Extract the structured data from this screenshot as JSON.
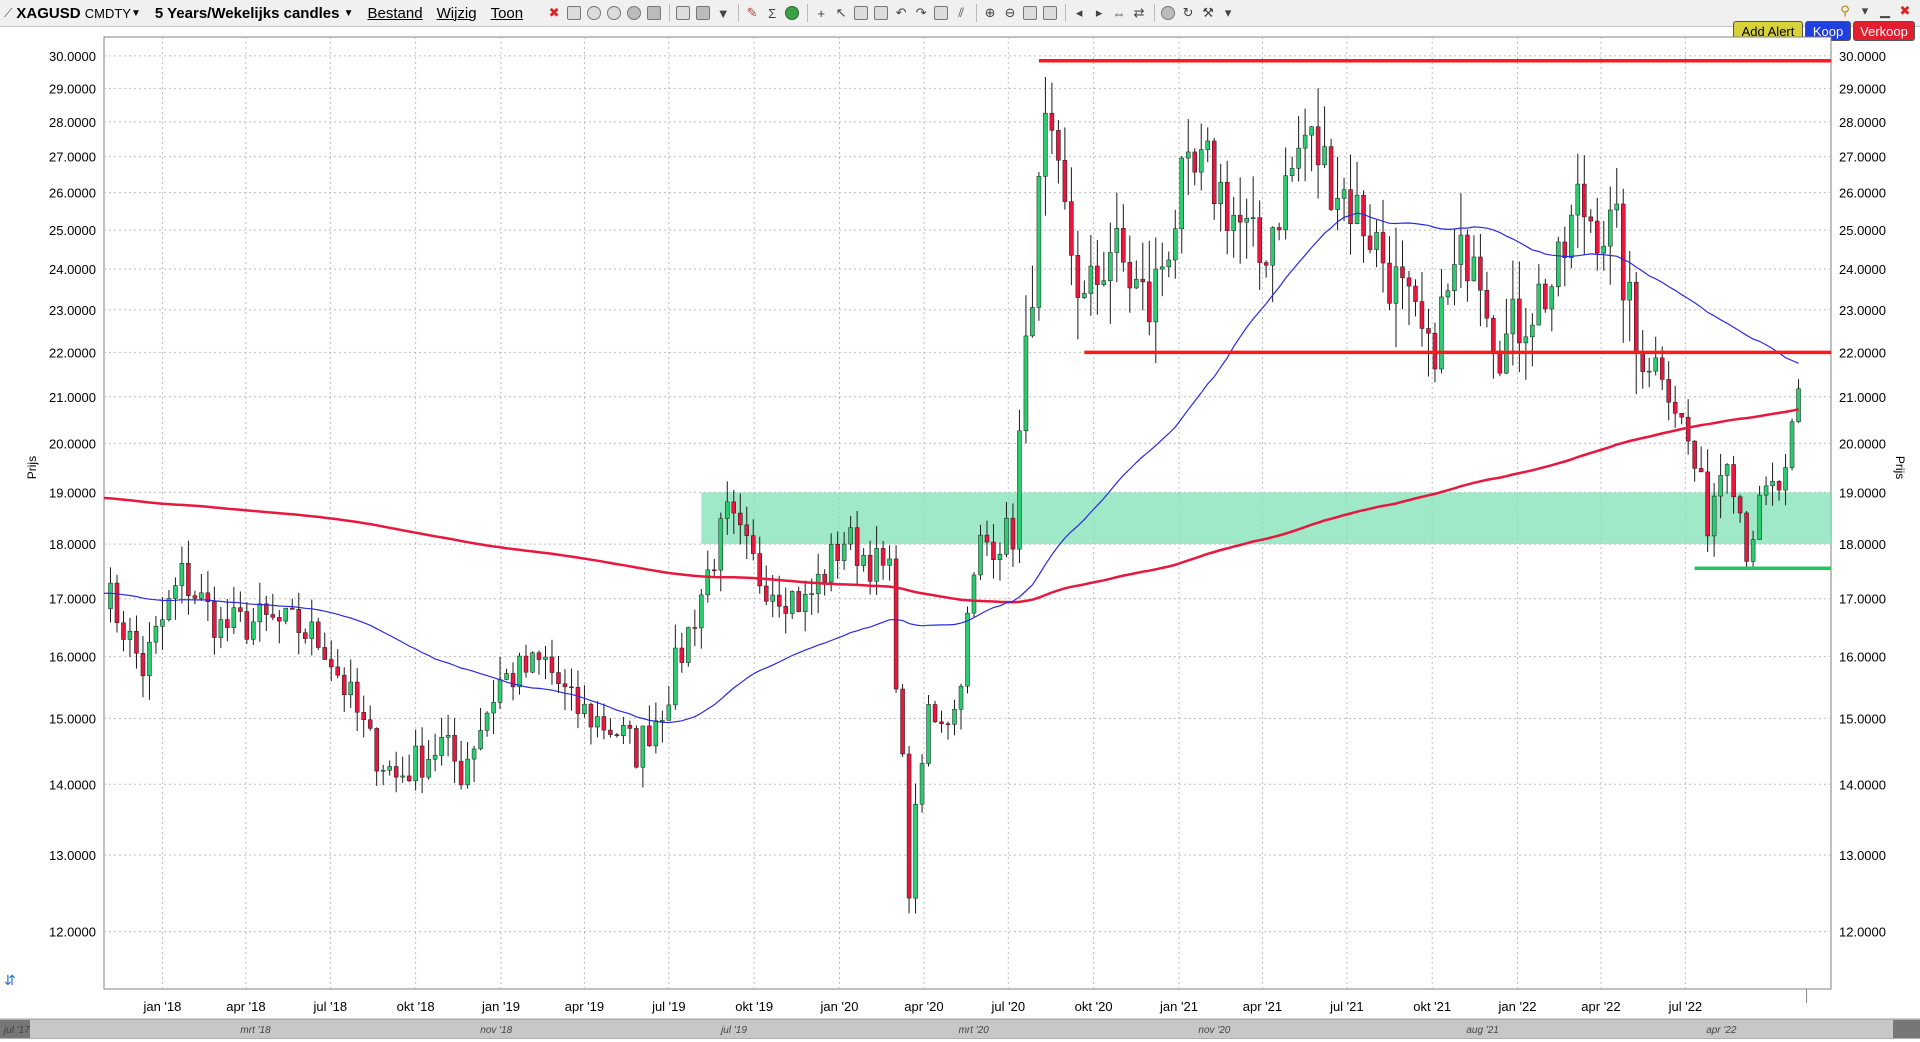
{
  "toolbar": {
    "symbol": "XAGUSD",
    "symbol_suffix": "CMDTY",
    "period": "5 Years/Wekelijks candles",
    "menus": [
      "Bestand",
      "Wijzig",
      "Toon"
    ],
    "buttons": {
      "add_alert": "Add Alert",
      "buy": "Koop",
      "sell": "Verkoop"
    }
  },
  "chart_data": {
    "type": "candlestick",
    "title": "",
    "ylabel": "Prijs",
    "ylim": [
      11.3,
      30.6
    ],
    "y_scale": "log",
    "y_ticks": [
      {
        "v": 30,
        "label": "30.0000"
      },
      {
        "v": 29,
        "label": "29.0000"
      },
      {
        "v": 28,
        "label": "28.0000"
      },
      {
        "v": 27,
        "label": "27.0000"
      },
      {
        "v": 26,
        "label": "26.0000"
      },
      {
        "v": 25,
        "label": "25.0000"
      },
      {
        "v": 24,
        "label": "24.0000"
      },
      {
        "v": 23,
        "label": "23.0000"
      },
      {
        "v": 22,
        "label": "22.0000"
      },
      {
        "v": 21,
        "label": "21.0000"
      },
      {
        "v": 20,
        "label": "20.0000"
      },
      {
        "v": 19,
        "label": "19.0000"
      },
      {
        "v": 18,
        "label": "18.0000"
      },
      {
        "v": 17,
        "label": "17.0000"
      },
      {
        "v": 16,
        "label": "16.0000"
      },
      {
        "v": 15,
        "label": "15.0000"
      },
      {
        "v": 14,
        "label": "14.0000"
      },
      {
        "v": 13,
        "label": "13.0000"
      },
      {
        "v": 12,
        "label": "12.0000"
      }
    ],
    "x_start": "2017-10-30",
    "x_end": "2022-12-05",
    "x_ticks": [
      {
        "d": "2018-01-01",
        "label": "jan '18"
      },
      {
        "d": "2018-04-01",
        "label": "apr '18"
      },
      {
        "d": "2018-07-01",
        "label": "jul '18"
      },
      {
        "d": "2018-10-01",
        "label": "okt '18"
      },
      {
        "d": "2019-01-01",
        "label": "jan '19"
      },
      {
        "d": "2019-04-01",
        "label": "apr '19"
      },
      {
        "d": "2019-07-01",
        "label": "jul '19"
      },
      {
        "d": "2019-10-01",
        "label": "okt '19"
      },
      {
        "d": "2020-01-01",
        "label": "jan '20"
      },
      {
        "d": "2020-04-01",
        "label": "apr '20"
      },
      {
        "d": "2020-07-01",
        "label": "jul '20"
      },
      {
        "d": "2020-10-01",
        "label": "okt '20"
      },
      {
        "d": "2021-01-01",
        "label": "jan '21"
      },
      {
        "d": "2021-04-01",
        "label": "apr '21"
      },
      {
        "d": "2021-07-01",
        "label": "jul '21"
      },
      {
        "d": "2021-10-01",
        "label": "okt '21"
      },
      {
        "d": "2022-01-01",
        "label": "jan '22"
      },
      {
        "d": "2022-04-01",
        "label": "apr '22"
      },
      {
        "d": "2022-07-01",
        "label": "jul '22"
      }
    ],
    "navigator_labels": [
      {
        "d": "2017-07-01",
        "label": "jul '17"
      },
      {
        "d": "2018-03-01",
        "label": "mrt '18"
      },
      {
        "d": "2018-11-01",
        "label": "nov '18"
      },
      {
        "d": "2019-07-01",
        "label": "jul '19"
      },
      {
        "d": "2020-03-01",
        "label": "mrt '20"
      },
      {
        "d": "2020-11-01",
        "label": "nov '20"
      },
      {
        "d": "2021-08-01",
        "label": "aug '21"
      },
      {
        "d": "2022-04-01",
        "label": "apr '22"
      }
    ],
    "price_anchors": [
      [
        "2017-10-30",
        17.2
      ],
      [
        "2017-12-11",
        15.8
      ],
      [
        "2018-01-22",
        17.4
      ],
      [
        "2018-03-05",
        16.5
      ],
      [
        "2018-04-16",
        16.6
      ],
      [
        "2018-05-28",
        16.5
      ],
      [
        "2018-06-25",
        16.2
      ],
      [
        "2018-08-13",
        14.6
      ],
      [
        "2018-09-10",
        14.1
      ],
      [
        "2018-10-29",
        14.6
      ],
      [
        "2018-11-19",
        14.2
      ],
      [
        "2018-12-31",
        15.6
      ],
      [
        "2019-02-18",
        15.9
      ],
      [
        "2019-03-18",
        15.2
      ],
      [
        "2019-05-06",
        14.8
      ],
      [
        "2019-05-27",
        14.5
      ],
      [
        "2019-06-24",
        15.2
      ],
      [
        "2019-07-22",
        16.4
      ],
      [
        "2019-09-02",
        18.5
      ],
      [
        "2019-10-07",
        17.4
      ],
      [
        "2019-11-25",
        16.9
      ],
      [
        "2020-01-06",
        18.1
      ],
      [
        "2020-02-24",
        17.4
      ],
      [
        "2020-03-16",
        12.6
      ],
      [
        "2020-04-06",
        15.1
      ],
      [
        "2020-05-04",
        15.1
      ],
      [
        "2020-06-01",
        18.0
      ],
      [
        "2020-07-06",
        18.2
      ],
      [
        "2020-07-27",
        23.9
      ],
      [
        "2020-08-10",
        27.5
      ],
      [
        "2020-09-21",
        23.0
      ],
      [
        "2020-10-19",
        24.6
      ],
      [
        "2020-11-30",
        23.0
      ],
      [
        "2021-01-04",
        26.0
      ],
      [
        "2021-02-01",
        26.6
      ],
      [
        "2021-03-29",
        24.2
      ],
      [
        "2021-05-17",
        27.6
      ],
      [
        "2021-06-14",
        26.5
      ],
      [
        "2021-07-26",
        25.0
      ],
      [
        "2021-09-13",
        22.5
      ],
      [
        "2021-09-27",
        22.0
      ],
      [
        "2021-11-15",
        25.0
      ],
      [
        "2021-12-13",
        22.0
      ],
      [
        "2022-01-10",
        23.0
      ],
      [
        "2022-02-14",
        23.8
      ],
      [
        "2022-03-07",
        25.7
      ],
      [
        "2022-04-18",
        24.8
      ],
      [
        "2022-05-09",
        22.0
      ],
      [
        "2022-06-06",
        21.7
      ],
      [
        "2022-07-04",
        20.0
      ],
      [
        "2022-07-25",
        18.5
      ],
      [
        "2022-08-15",
        20.0
      ],
      [
        "2022-09-05",
        18.0
      ],
      [
        "2022-09-26",
        18.9
      ],
      [
        "2022-10-17",
        19.2
      ],
      [
        "2022-10-31",
        20.9
      ]
    ],
    "lines": [
      {
        "color": "#ff1a1a",
        "value": 29.85,
        "from": "2020-08-03",
        "to": "2022-12-05"
      },
      {
        "color": "#ff1a1a",
        "value": 22.0,
        "from": "2020-09-21",
        "to": "2022-12-05"
      },
      {
        "color": "#22c55e",
        "value": 17.55,
        "from": "2022-07-11",
        "to": "2022-12-05"
      }
    ],
    "zones": [
      {
        "color": "#7fe0b6",
        "from": "2019-08-05",
        "to": "2022-12-05",
        "low": 18.0,
        "high": 19.0
      }
    ],
    "ma_long_color": "#e8173d",
    "ma_short_color": "#2a2ae0",
    "up_color": "#2ecc71",
    "down_color": "#e8173d"
  }
}
